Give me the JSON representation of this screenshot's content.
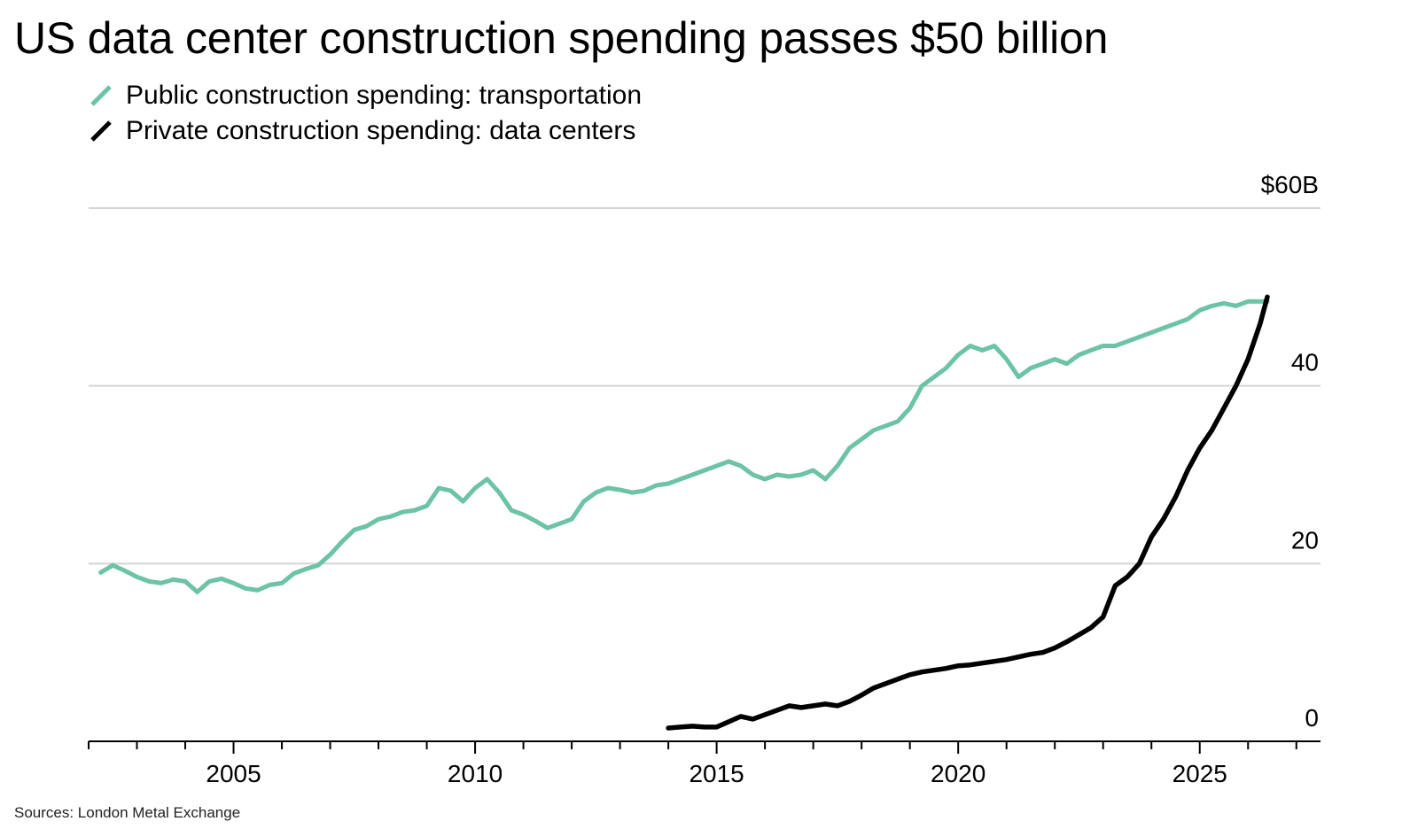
{
  "chart_data": {
    "type": "line",
    "title": "US data center construction spending passes $50 billion",
    "xlabel": "",
    "ylabel": "",
    "y_unit_label": "$60B",
    "ylim": [
      0,
      60
    ],
    "xlim": [
      2002.0,
      2027.5
    ],
    "y_ticks": [
      {
        "value": 60,
        "label": "$60B"
      },
      {
        "value": 40,
        "label": "40"
      },
      {
        "value": 20,
        "label": "20"
      },
      {
        "value": 0,
        "label": "0"
      }
    ],
    "x_ticks": [
      {
        "value": 2005,
        "label": "2005"
      },
      {
        "value": 2010,
        "label": "2010"
      },
      {
        "value": 2015,
        "label": "2015"
      },
      {
        "value": 2020,
        "label": "2020"
      },
      {
        "value": 2025,
        "label": "2025"
      }
    ],
    "grid": true,
    "legend_position": "top-left",
    "series": [
      {
        "name": "Public construction spending: transportation",
        "color": "#6cc3a5",
        "x": [
          2002.25,
          2002.5,
          2002.75,
          2003.0,
          2003.25,
          2003.5,
          2003.75,
          2004.0,
          2004.25,
          2004.5,
          2004.75,
          2005.0,
          2005.25,
          2005.5,
          2005.75,
          2006.0,
          2006.25,
          2006.5,
          2006.75,
          2007.0,
          2007.25,
          2007.5,
          2007.75,
          2008.0,
          2008.25,
          2008.5,
          2008.75,
          2009.0,
          2009.25,
          2009.5,
          2009.75,
          2010.0,
          2010.25,
          2010.5,
          2010.75,
          2011.0,
          2011.25,
          2011.5,
          2011.75,
          2012.0,
          2012.25,
          2012.5,
          2012.75,
          2013.0,
          2013.25,
          2013.5,
          2013.75,
          2014.0,
          2014.25,
          2014.5,
          2014.75,
          2015.0,
          2015.25,
          2015.5,
          2015.75,
          2016.0,
          2016.25,
          2016.5,
          2016.75,
          2017.0,
          2017.25,
          2017.5,
          2017.75,
          2018.0,
          2018.25,
          2018.5,
          2018.75,
          2019.0,
          2019.25,
          2019.5,
          2019.75,
          2020.0,
          2020.25,
          2020.5,
          2020.75,
          2021.0,
          2021.25,
          2021.5,
          2021.75,
          2022.0,
          2022.25,
          2022.5,
          2022.75,
          2023.0,
          2023.25,
          2023.5,
          2023.75,
          2024.0,
          2024.25,
          2024.5,
          2024.75,
          2025.0,
          2025.25,
          2025.5,
          2025.75,
          2026.0,
          2026.25,
          2026.4
        ],
        "values": [
          19.0,
          19.8,
          19.2,
          18.5,
          18.0,
          17.8,
          18.2,
          18.0,
          16.8,
          18.0,
          18.3,
          17.8,
          17.2,
          17.0,
          17.6,
          17.8,
          18.9,
          19.4,
          19.8,
          21.0,
          22.5,
          23.8,
          24.2,
          25.0,
          25.3,
          25.8,
          26.0,
          26.5,
          28.5,
          28.2,
          27.0,
          28.5,
          29.5,
          28.0,
          26.0,
          25.5,
          24.8,
          24.0,
          24.5,
          25.0,
          27.0,
          28.0,
          28.5,
          28.3,
          28.0,
          28.2,
          28.8,
          29.0,
          29.5,
          30.0,
          30.5,
          31.0,
          31.5,
          31.0,
          30.0,
          29.5,
          30.0,
          29.8,
          30.0,
          30.5,
          29.5,
          31.0,
          33.0,
          34.0,
          35.0,
          35.5,
          36.0,
          37.5,
          40.0,
          41.0,
          42.0,
          43.5,
          44.5,
          44.0,
          44.5,
          43.0,
          41.0,
          42.0,
          42.5,
          43.0,
          42.5,
          43.5,
          44.0,
          44.5,
          44.5,
          45.0,
          45.5,
          46.0,
          46.5,
          47.0,
          47.5,
          48.5,
          49.0,
          49.3,
          49.0,
          49.5,
          49.5,
          49.5
        ]
      },
      {
        "name": "Private construction spending: data centers",
        "color": "#000000",
        "x": [
          2014.0,
          2014.25,
          2014.5,
          2014.75,
          2015.0,
          2015.25,
          2015.5,
          2015.75,
          2016.0,
          2016.25,
          2016.5,
          2016.75,
          2017.0,
          2017.25,
          2017.5,
          2017.75,
          2018.0,
          2018.25,
          2018.5,
          2018.75,
          2019.0,
          2019.25,
          2019.5,
          2019.75,
          2020.0,
          2020.25,
          2020.5,
          2020.75,
          2021.0,
          2021.25,
          2021.5,
          2021.75,
          2022.0,
          2022.25,
          2022.5,
          2022.75,
          2023.0,
          2023.25,
          2023.5,
          2023.75,
          2024.0,
          2024.25,
          2024.5,
          2024.75,
          2025.0,
          2025.25,
          2025.5,
          2025.75,
          2026.0,
          2026.25,
          2026.4
        ],
        "values": [
          1.5,
          1.6,
          1.7,
          1.6,
          1.6,
          2.2,
          2.8,
          2.5,
          3.0,
          3.5,
          4.0,
          3.8,
          4.0,
          4.2,
          4.0,
          4.5,
          5.2,
          6.0,
          6.5,
          7.0,
          7.5,
          7.8,
          8.0,
          8.2,
          8.5,
          8.6,
          8.8,
          9.0,
          9.2,
          9.5,
          9.8,
          10.0,
          10.5,
          11.2,
          12.0,
          12.8,
          14.0,
          17.5,
          18.5,
          20.0,
          23.0,
          25.0,
          27.5,
          30.5,
          33.0,
          35.0,
          37.5,
          40.0,
          43.0,
          47.0,
          50.0
        ]
      }
    ]
  },
  "source_note": "Sources: London Metal Exchange"
}
